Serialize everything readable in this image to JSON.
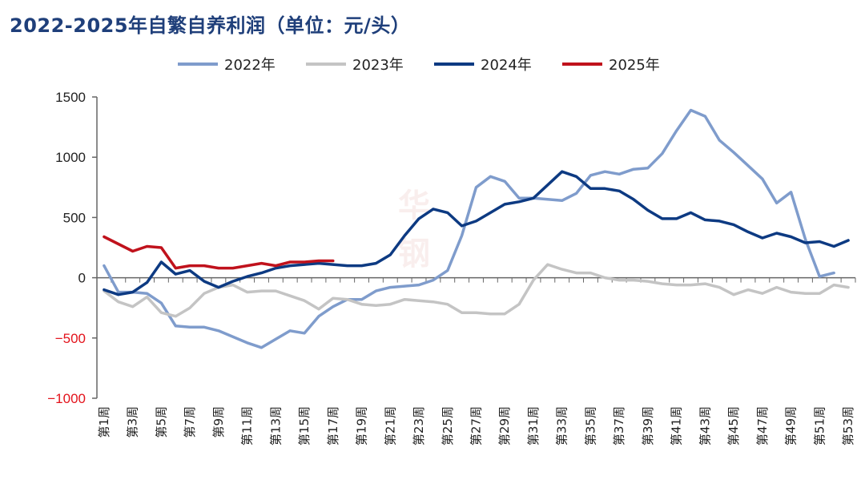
{
  "title": "2022-2025年自繁自养利润（单位：元/头）",
  "chart_data": {
    "type": "line",
    "title": "2022-2025年自繁自养利润（单位：元/头）",
    "ylim": [
      -1000,
      1500
    ],
    "yticks": [
      1500,
      1000,
      500,
      0,
      -500,
      -1000
    ],
    "ytick_labels": [
      "1500",
      "1000",
      "500",
      "0",
      "−500",
      "−1000"
    ],
    "negative_tick_color": "#e3121b",
    "positive_tick_color": "#222222",
    "grid": false,
    "legend_position": "top-center",
    "x_labels": [
      "第1周",
      "第3周",
      "第5周",
      "第7周",
      "第9周",
      "第11周",
      "第13周",
      "第15周",
      "第17周",
      "第19周",
      "第21周",
      "第23周",
      "第25周",
      "第27周",
      "第29周",
      "第31周",
      "第33周",
      "第35周",
      "第37周",
      "第39周",
      "第41周",
      "第43周",
      "第45周",
      "第47周",
      "第49周",
      "第51周",
      "第53周"
    ],
    "series": [
      {
        "name": "2022年",
        "color": "#7f9ccc",
        "values": [
          100,
          -120,
          -120,
          -130,
          -210,
          -400,
          -410,
          -410,
          -440,
          -490,
          -540,
          -580,
          -510,
          -440,
          -460,
          -320,
          -240,
          -180,
          -180,
          -110,
          -80,
          -70,
          -60,
          -20,
          60,
          350,
          750,
          840,
          800,
          660,
          660,
          650,
          640,
          700,
          850,
          880,
          860,
          900,
          910,
          1030,
          1220,
          1390,
          1340,
          1140,
          1040,
          930,
          820,
          620,
          710,
          320,
          10,
          40,
          null
        ]
      },
      {
        "name": "2023年",
        "color": "#c4c4c4",
        "values": [
          -110,
          -200,
          -240,
          -160,
          -290,
          -320,
          -250,
          -130,
          -80,
          -60,
          -120,
          -110,
          -110,
          -150,
          -190,
          -260,
          -170,
          -180,
          -220,
          -230,
          -220,
          -180,
          -190,
          -200,
          -220,
          -290,
          -290,
          -300,
          -300,
          -220,
          -20,
          110,
          70,
          40,
          40,
          0,
          -20,
          -20,
          -30,
          -50,
          -60,
          -60,
          -50,
          -80,
          -140,
          -100,
          -130,
          -80,
          -120,
          -130,
          -130,
          -60,
          -80
        ]
      },
      {
        "name": "2024年",
        "color": "#0d3a82",
        "values": [
          -100,
          -140,
          -120,
          -40,
          130,
          30,
          60,
          -30,
          -80,
          -30,
          10,
          40,
          80,
          100,
          110,
          120,
          110,
          100,
          100,
          120,
          190,
          350,
          490,
          570,
          540,
          430,
          470,
          540,
          610,
          630,
          660,
          770,
          880,
          840,
          740,
          740,
          720,
          650,
          560,
          490,
          490,
          540,
          480,
          470,
          440,
          380,
          330,
          370,
          340,
          290,
          300,
          260,
          310
        ]
      },
      {
        "name": "2025年",
        "color": "#c0121c",
        "values": [
          340,
          280,
          220,
          260,
          250,
          80,
          100,
          100,
          80,
          80,
          100,
          120,
          100,
          130,
          130,
          140,
          140
        ]
      }
    ]
  }
}
